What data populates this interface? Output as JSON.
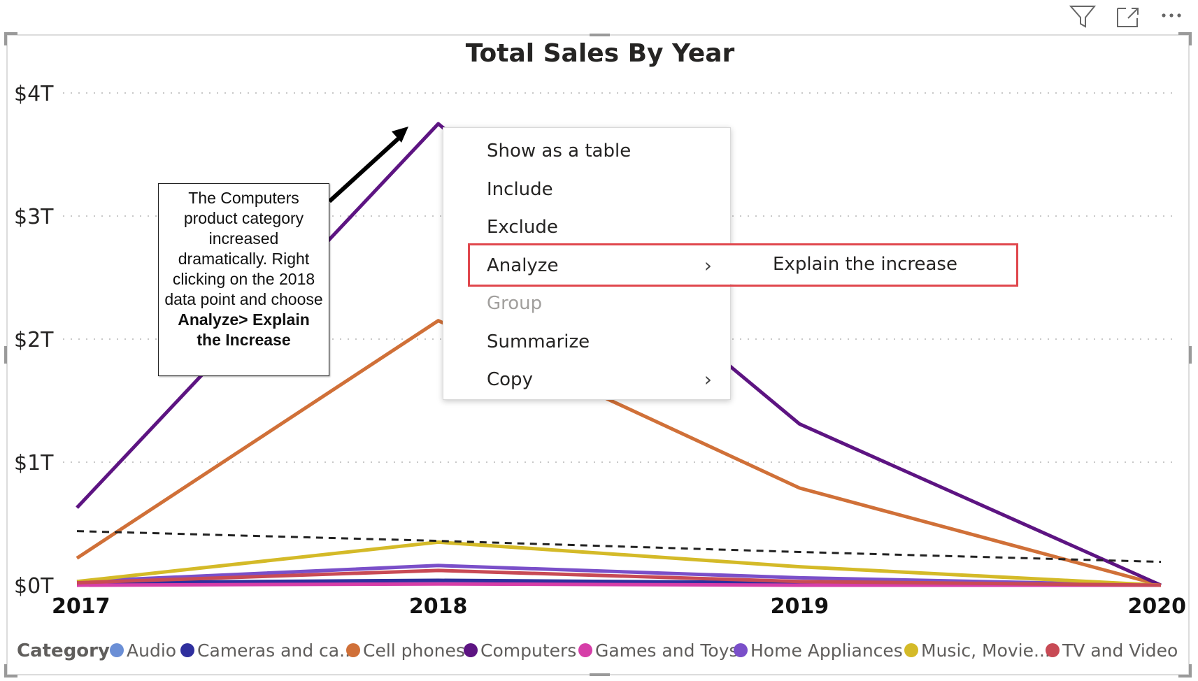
{
  "toolbar": {
    "icons": [
      "filter-icon",
      "focus-mode-icon",
      "more-options-icon"
    ]
  },
  "chart_data": {
    "type": "line",
    "title": "Total Sales By Year",
    "xlabel": "",
    "ylabel": "",
    "x": [
      "2017",
      "2018",
      "2019",
      "2020"
    ],
    "y_ticks": [
      "$0T",
      "$1T",
      "$2T",
      "$3T",
      "$4T"
    ],
    "ylim": [
      0,
      4
    ],
    "y_unit": "T",
    "grid": true,
    "legend_title": "Category",
    "legend_position": "bottom",
    "series": [
      {
        "name": "Audio",
        "color": "#6b8fd6",
        "values": [
          0.01,
          0.02,
          0.01,
          0.0
        ]
      },
      {
        "name": "Cameras and ca...",
        "color": "#2f2f9e",
        "values": [
          0.02,
          0.04,
          0.02,
          0.0
        ]
      },
      {
        "name": "Cell phones",
        "color": "#d07038",
        "values": [
          0.22,
          2.15,
          0.79,
          0.0
        ]
      },
      {
        "name": "Computers",
        "color": "#5d1482",
        "values": [
          0.63,
          3.75,
          1.31,
          0.0
        ]
      },
      {
        "name": "Games and Toys",
        "color": "#d63ea8",
        "values": [
          0.0,
          0.01,
          0.0,
          0.0
        ]
      },
      {
        "name": "Home Appliances",
        "color": "#7a4fc9",
        "values": [
          0.03,
          0.16,
          0.06,
          0.0
        ]
      },
      {
        "name": "Music, Movie...",
        "color": "#d4ba28",
        "values": [
          0.03,
          0.35,
          0.15,
          0.0
        ]
      },
      {
        "name": "TV and Video",
        "color": "#c84a55",
        "values": [
          0.02,
          0.12,
          0.03,
          0.0
        ]
      }
    ],
    "trend_line": {
      "color": "#222222",
      "values": [
        0.44,
        0.36,
        0.27,
        0.19
      ]
    }
  },
  "context_menu": {
    "items": [
      {
        "label": "Show as a table",
        "disabled": false,
        "submenu": false
      },
      {
        "label": "Include",
        "disabled": false,
        "submenu": false
      },
      {
        "label": "Exclude",
        "disabled": false,
        "submenu": false
      },
      {
        "label": "Analyze",
        "disabled": false,
        "submenu": true
      },
      {
        "label": "Group",
        "disabled": true,
        "submenu": false
      },
      {
        "label": "Summarize",
        "disabled": false,
        "submenu": false
      },
      {
        "label": "Copy",
        "disabled": false,
        "submenu": true
      }
    ],
    "arrow_glyph": "›",
    "submenu_item": "Explain the increase",
    "highlight_color": "#e0474d"
  },
  "callout": {
    "line1": "The Computers product category increased dramatically. Right clicking on the 2018 data point and choose ",
    "bold": "Analyze> Explain the Increase"
  }
}
